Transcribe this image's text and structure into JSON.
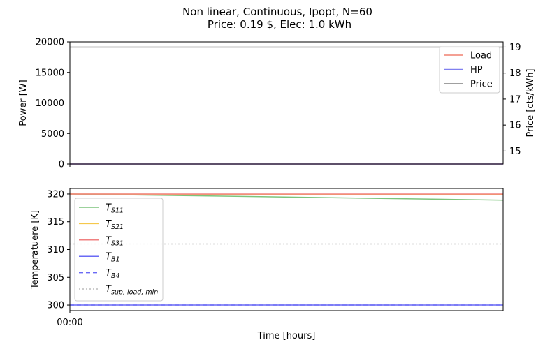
{
  "figure": {
    "title_line1": "Non linear, Continuous, Ipopt, N=60",
    "title_line2": "Price: 0.19 $, Elec: 1.0 kWh"
  },
  "chart_data": [
    {
      "type": "line",
      "ylabel": "Power [W]",
      "ylabel_right": "Price [cts/kWh]",
      "ylim": [
        0,
        20000
      ],
      "yticks": [
        "0",
        "5000",
        "10000",
        "15000",
        "20000"
      ],
      "ylim_right": [
        14.5,
        19.2
      ],
      "yticks_right": [
        "15",
        "16",
        "17",
        "18",
        "19"
      ],
      "x": [
        0,
        1
      ],
      "legend_position": "top-right",
      "series": [
        {
          "name": "Load",
          "color": "#f08070",
          "axis": "left",
          "values": [
            0,
            0
          ]
        },
        {
          "name": "HP",
          "color": "#8080f0",
          "axis": "left",
          "values": [
            0,
            0
          ]
        },
        {
          "name": "Price",
          "color": "#808080",
          "axis": "right",
          "values": [
            19,
            19
          ]
        }
      ]
    },
    {
      "type": "line",
      "ylabel": "Temperatuere [K]",
      "xlabel": "Time [hours]",
      "xticks": [
        "00:00"
      ],
      "ylim": [
        299,
        321
      ],
      "yticks": [
        "300",
        "305",
        "310",
        "315",
        "320"
      ],
      "x": [
        0,
        1
      ],
      "legend_position": "center-left",
      "series": [
        {
          "name": "T_S11",
          "label_main": "T",
          "label_sub": "S11",
          "color": "#7cc47c",
          "dash": "solid",
          "values": [
            320,
            318.9
          ]
        },
        {
          "name": "T_S21",
          "label_main": "T",
          "label_sub": "S21",
          "color": "#f5c84c",
          "dash": "solid",
          "values": [
            320,
            319.85
          ]
        },
        {
          "name": "T_S31",
          "label_main": "T",
          "label_sub": "S31",
          "color": "#f08080",
          "dash": "solid",
          "values": [
            320,
            320
          ]
        },
        {
          "name": "T_B1",
          "label_main": "T",
          "label_sub": "B1",
          "color": "#6a6af5",
          "dash": "solid",
          "values": [
            300,
            300
          ]
        },
        {
          "name": "T_B4",
          "label_main": "T",
          "label_sub": "B4",
          "color": "#6a6af5",
          "dash": "dashed",
          "values": [
            300,
            300
          ]
        },
        {
          "name": "T_sup,load,min",
          "label_main": "T",
          "label_sub": "sup, load, min",
          "color": "#bbbbbb",
          "dash": "dotted",
          "values": [
            311,
            311
          ]
        }
      ]
    }
  ]
}
